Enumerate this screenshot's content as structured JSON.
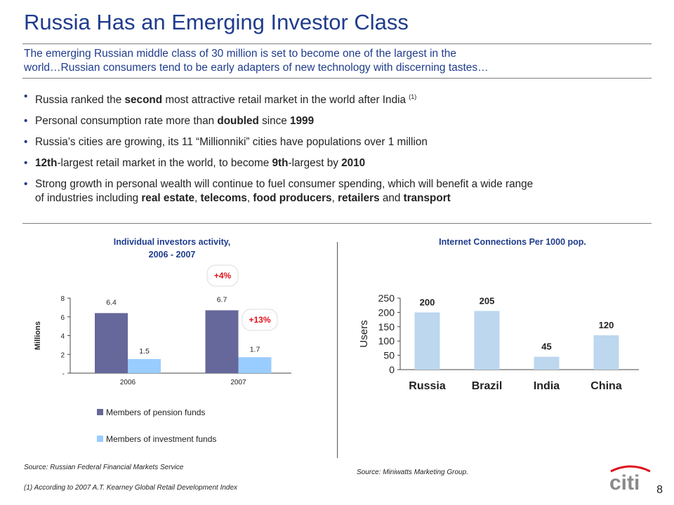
{
  "title": "Russia Has an Emerging Investor Class",
  "subtitle": {
    "line1": "The emerging Russian middle class of 30 million is set to become one of the largest in the",
    "line2": "world…Russian consumers tend to be early adapters of new technology with discerning tastes…"
  },
  "bullets": [
    {
      "segments": [
        [
          "Russia ranked the ",
          false
        ],
        [
          "second",
          true
        ],
        [
          " most attractive retail market in the world after India ",
          false
        ]
      ],
      "sup": "(1)"
    },
    {
      "segments": [
        [
          "Personal consumption rate more than ",
          false
        ],
        [
          "doubled",
          true
        ],
        [
          " since ",
          false
        ],
        [
          "1999",
          true
        ]
      ]
    },
    {
      "segments": [
        [
          "Russia’s cities are growing, its 11 “Millionniki” cities have populations over 1 million",
          false
        ]
      ]
    },
    {
      "segments": [
        [
          "12th",
          true
        ],
        [
          "-largest retail market in the world, to become ",
          false
        ],
        [
          "9th",
          true
        ],
        [
          "-largest by ",
          false
        ],
        [
          "2010",
          true
        ]
      ]
    },
    {
      "segments": [
        [
          "Strong growth in personal wealth will continue to fuel consumer spending, which will benefit a wide range",
          false
        ]
      ],
      "continuation": [
        [
          "of industries including ",
          false
        ],
        [
          "real estate",
          true
        ],
        [
          ", ",
          false
        ],
        [
          "telecoms",
          true
        ],
        [
          ", ",
          false
        ],
        [
          "food producers",
          true
        ],
        [
          ", ",
          false
        ],
        [
          "retailers",
          true
        ],
        [
          " and ",
          false
        ],
        [
          "transport",
          true
        ]
      ]
    }
  ],
  "left_chart_heading": {
    "line1": "Individual investors activity,",
    "line2": "2006 - 2007"
  },
  "right_chart_heading": "Internet Connections Per 1000 pop.",
  "colors": {
    "title": "#1f3c8c",
    "pension": "#66679a",
    "investment": "#99ccff",
    "internet": "#bcd7ee",
    "badge": "#e0111b"
  },
  "chart_data": [
    {
      "type": "bar",
      "categories": [
        "2006",
        "2007"
      ],
      "series": [
        {
          "name": "Members of pension funds",
          "values": [
            6.4,
            6.7
          ],
          "labels": [
            "6.4",
            "6.7"
          ]
        },
        {
          "name": "Members of investment funds",
          "values": [
            1.5,
            1.7
          ],
          "labels": [
            "1.5",
            "1.7"
          ]
        }
      ],
      "ylabel": "Millions",
      "ylim": [
        0,
        8
      ],
      "yticks": [
        0,
        2,
        4,
        6,
        8
      ],
      "ytick_labels": [
        "-",
        "2",
        "4",
        "6",
        "8"
      ],
      "annotations": [
        "+4%",
        "+13%"
      ],
      "legend": "bottom"
    },
    {
      "type": "bar",
      "categories": [
        "Russia",
        "Brazil",
        "India",
        "China"
      ],
      "values": [
        200,
        205,
        45,
        120
      ],
      "labels": [
        "200",
        "205",
        "45",
        "120"
      ],
      "ylabel": "Users",
      "ylim": [
        0,
        250
      ],
      "yticks": [
        0,
        50,
        100,
        150,
        200,
        250
      ]
    }
  ],
  "sources": {
    "left": "Source: Russian Federal Financial Markets Service",
    "right": "Source:  Miniwatts Marketing Group.",
    "footnote": "(1) According to 2007 A.T.  Kearney Global Retail Development Index"
  },
  "logo_text": "citi",
  "page_number": "8"
}
